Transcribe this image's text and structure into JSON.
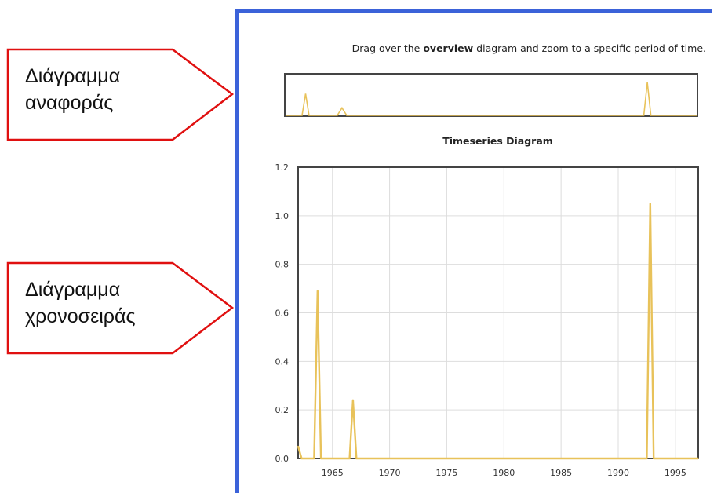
{
  "callouts": [
    {
      "text": "Διάγραμμα\nαναφοράς"
    },
    {
      "text": "Διάγραμμα\nχρονοσειράς"
    }
  ],
  "instruction": {
    "prefix": "Drag over the ",
    "bold": "overview",
    "suffix": " diagram and zoom to a specific period of time."
  },
  "colors": {
    "series": "#e8c25a",
    "frame_blue": "#3b62d9",
    "callout_red": "#e01010",
    "grid": "#dddddd",
    "axis_frame": "#444444"
  },
  "chart_data": [
    {
      "type": "line",
      "role": "overview",
      "title": "",
      "xlim": [
        1962,
        1997
      ],
      "ylim": [
        0,
        1.2
      ],
      "x": [
        1962.0,
        1963.4,
        1963.7,
        1964.0,
        1966.4,
        1966.8,
        1967.2,
        1992.5,
        1992.8,
        1993.1,
        1997.0
      ],
      "values": [
        0.0,
        0.0,
        0.69,
        0.0,
        0.0,
        0.24,
        0.0,
        0.0,
        1.05,
        0.0,
        0.0
      ]
    },
    {
      "type": "line",
      "role": "main",
      "title": "Timeseries Diagram",
      "xlabel": "",
      "ylabel": "",
      "xlim": [
        1962,
        1997
      ],
      "ylim": [
        0,
        1.2
      ],
      "grid": true,
      "xticks": [
        "1965",
        "1970",
        "1975",
        "1980",
        "1985",
        "1990",
        "1995"
      ],
      "xtick_values": [
        1965,
        1970,
        1975,
        1980,
        1985,
        1990,
        1995
      ],
      "yticks": [
        "0.0",
        "0.2",
        "0.4",
        "0.6",
        "0.8",
        "1.0",
        "1.2"
      ],
      "ytick_values": [
        0,
        0.2,
        0.4,
        0.6,
        0.8,
        1.0,
        1.2
      ],
      "x": [
        1962.0,
        1962.3,
        1962.5,
        1963.4,
        1963.7,
        1964.0,
        1966.5,
        1966.8,
        1967.1,
        1992.5,
        1992.8,
        1993.1,
        1997.0
      ],
      "values": [
        0.05,
        0.0,
        0.0,
        0.0,
        0.69,
        0.0,
        0.0,
        0.24,
        0.0,
        0.0,
        1.05,
        0.0,
        0.0
      ]
    }
  ]
}
